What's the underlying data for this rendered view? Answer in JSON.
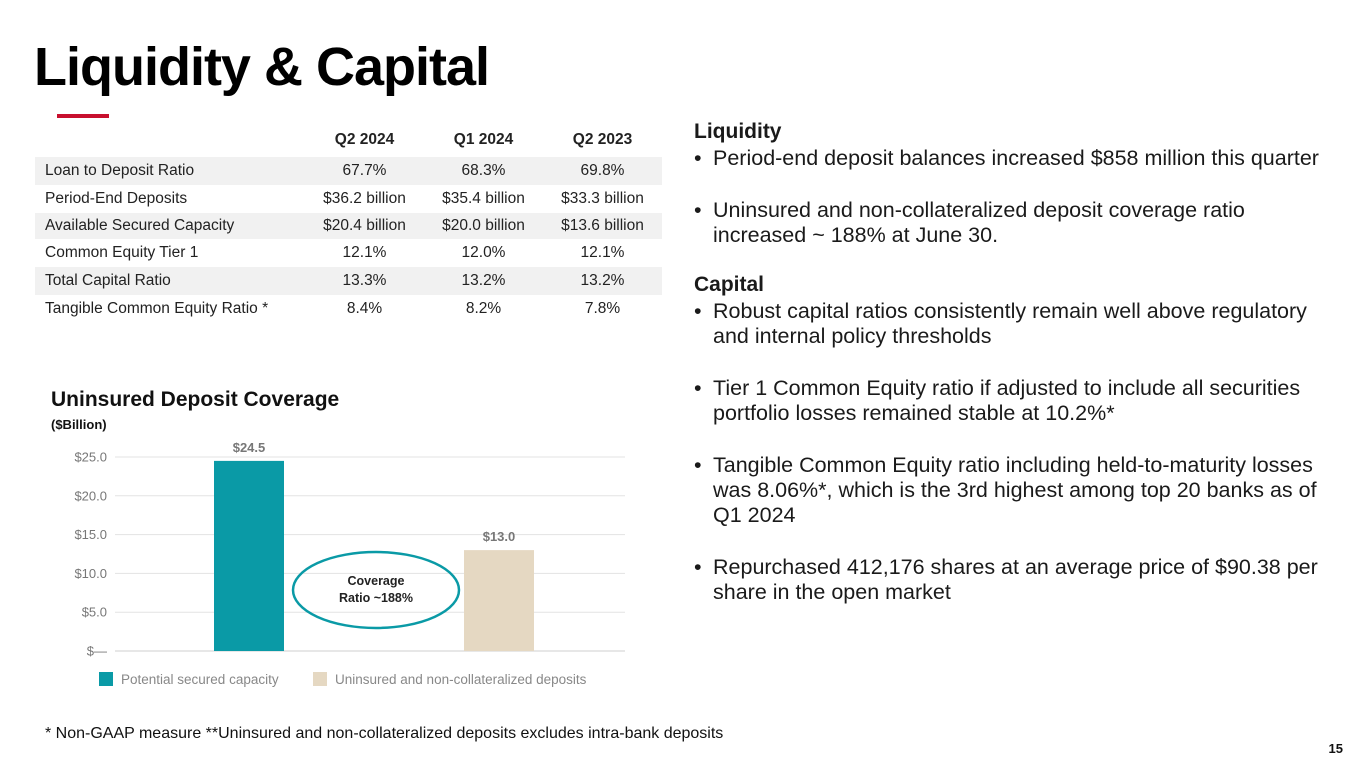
{
  "title": "Liquidity & Capital",
  "table": {
    "columns": [
      "Q2 2024",
      "Q1 2024",
      "Q2 2023"
    ],
    "rows": [
      {
        "label": "Loan to Deposit Ratio",
        "values": [
          "67.7%",
          "68.3%",
          "69.8%"
        ]
      },
      {
        "label": "Period-End Deposits",
        "values": [
          "$36.2 billion",
          "$35.4 billion",
          "$33.3 billion"
        ]
      },
      {
        "label": "Available Secured Capacity",
        "values": [
          "$20.4 billion",
          "$20.0 billion",
          "$13.6 billion"
        ]
      },
      {
        "label": "Common Equity Tier 1",
        "values": [
          "12.1%",
          "12.0%",
          "12.1%"
        ]
      },
      {
        "label": "Total Capital Ratio",
        "values": [
          "13.3%",
          "13.2%",
          "13.2%"
        ]
      },
      {
        "label": "Tangible Common Equity Ratio *",
        "values": [
          "8.4%",
          "8.2%",
          "7.8%"
        ]
      }
    ]
  },
  "chart_data": {
    "type": "bar",
    "title": "Uninsured Deposit Coverage",
    "subtitle": "($Billion)",
    "categories": [
      "Potential secured capacity",
      "Uninsured and non-collateralized deposits"
    ],
    "values": [
      24.5,
      13.0
    ],
    "value_labels": [
      "$24.5",
      "$13.0"
    ],
    "colors": [
      "#0a9aa6",
      "#e5d8c2"
    ],
    "ylim": [
      0,
      25
    ],
    "yticks": [
      0,
      5,
      10,
      15,
      20,
      25
    ],
    "ytick_labels": [
      "$—",
      "$5.0",
      "$10.0",
      "$15.0",
      "$20.0",
      "$25.0"
    ],
    "grid": true,
    "legend": "bottom",
    "annotation": {
      "line1": "Coverage",
      "line2": "Ratio ~188%",
      "color": "#0a9aa6"
    }
  },
  "right": {
    "liquidity_heading": "Liquidity",
    "liquidity_bullets": [
      "Period-end deposit balances increased $858 million this quarter",
      "Uninsured and non-collateralized deposit coverage ratio increased ~ 188% at June 30."
    ],
    "capital_heading": "Capital",
    "capital_bullets": [
      "Robust capital ratios consistently remain well above regulatory and internal policy thresholds",
      "Tier 1 Common Equity ratio if adjusted to include all securities portfolio losses remained stable at 10.2%*",
      "Tangible Common Equity ratio including held-to-maturity losses was 8.06%*, which is the 3rd highest among top 20 banks as of Q1 2024",
      "Repurchased 412,176 shares at an average price of $90.38 per share in the open market"
    ]
  },
  "footnote": "*   Non-GAAP measure  **Uninsured and non-collateralized deposits excludes intra-bank deposits",
  "page_number": "15",
  "colors": {
    "accent": "#c8102e",
    "teal": "#0a9aa6",
    "beige": "#e5d8c2"
  }
}
